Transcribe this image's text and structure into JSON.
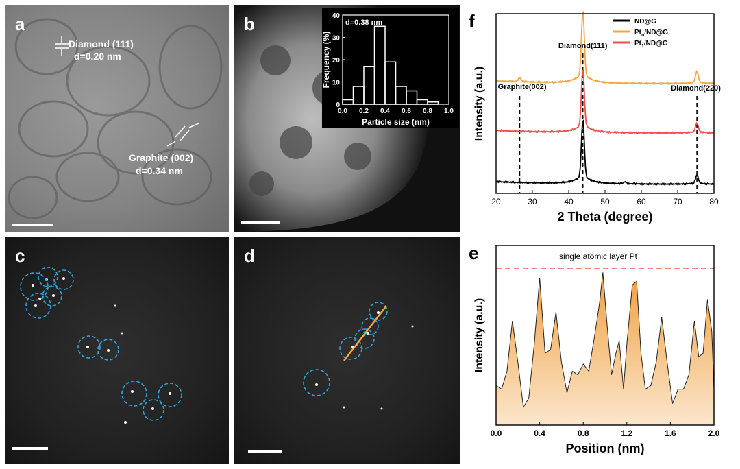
{
  "panels": {
    "a": {
      "label": "a",
      "ann1": "Diamond (111)",
      "ann2": "d=0.20 nm",
      "ann3": "Graphite (002)",
      "ann4": "d=0.34 nm"
    },
    "b": {
      "label": "b"
    },
    "c": {
      "label": "c"
    },
    "d": {
      "label": "d"
    },
    "e": {
      "label": "e",
      "line_label": "single atomic layer Pt"
    },
    "f": {
      "label": "f"
    }
  },
  "chart_data": [
    {
      "id": "b-inset",
      "type": "bar",
      "annotation": "d=0.38 nm",
      "xlabel": "Particle size (nm)",
      "ylabel": "Frequency (%)",
      "categories": [
        0.0,
        0.1,
        0.2,
        0.3,
        0.4,
        0.5,
        0.6,
        0.7,
        0.8,
        0.9
      ],
      "bin_width": 0.1,
      "values": [
        2,
        8,
        17,
        35,
        19,
        8,
        6,
        2,
        1,
        0
      ],
      "xlim": [
        0.0,
        1.0
      ],
      "ylim": [
        0,
        40
      ],
      "xticks": [
        "0.0",
        "0.2",
        "0.4",
        "0.6",
        "0.8",
        "1.0"
      ],
      "yticks": [
        "0",
        "10",
        "20",
        "30",
        "40"
      ]
    },
    {
      "id": "e",
      "type": "area",
      "xlabel": "Position (nm)",
      "ylabel": "Intensity (a.u.)",
      "xlim": [
        0.0,
        2.0
      ],
      "ylim": [
        0,
        1
      ],
      "xticks": [
        "0.0",
        "0.4",
        "0.8",
        "1.2",
        "1.6",
        "2.0"
      ],
      "x": [
        0,
        0.05,
        0.1,
        0.15,
        0.2,
        0.25,
        0.3,
        0.35,
        0.4,
        0.45,
        0.5,
        0.55,
        0.6,
        0.65,
        0.7,
        0.75,
        0.8,
        0.85,
        0.9,
        0.95,
        0.98,
        1.02,
        1.06,
        1.1,
        1.13,
        1.17,
        1.2,
        1.25,
        1.29,
        1.33,
        1.37,
        1.42,
        1.47,
        1.52,
        1.57,
        1.62,
        1.67,
        1.72,
        1.77,
        1.82,
        1.86,
        1.9,
        1.94,
        1.98,
        2.0
      ],
      "y": [
        0.22,
        0.2,
        0.3,
        0.58,
        0.35,
        0.1,
        0.15,
        0.45,
        0.82,
        0.4,
        0.42,
        0.63,
        0.35,
        0.18,
        0.3,
        0.28,
        0.34,
        0.3,
        0.48,
        0.68,
        0.85,
        0.55,
        0.28,
        0.4,
        0.47,
        0.2,
        0.45,
        0.78,
        0.8,
        0.4,
        0.2,
        0.22,
        0.35,
        0.6,
        0.35,
        0.12,
        0.2,
        0.2,
        0.28,
        0.58,
        0.38,
        0.4,
        0.7,
        0.52,
        0.2
      ],
      "reference_level": 0.87
    },
    {
      "id": "f",
      "type": "line",
      "xlabel": "2 Theta (degree)",
      "ylabel": "Intensity (a.u.)",
      "xlim": [
        20,
        80
      ],
      "xticks": [
        "20",
        "30",
        "40",
        "50",
        "60",
        "70",
        "80"
      ],
      "annotations": [
        "Graphite(002)",
        "Diamond(111)",
        "Diamond(220)"
      ],
      "reference_lines_x": [
        26.5,
        43.9,
        75.3
      ],
      "series": [
        {
          "name": "ND@G",
          "color": "#000000",
          "offset": 0,
          "peaks": [
            [
              43.9,
              0.64
            ],
            [
              75.3,
              0.09
            ],
            [
              55.5,
              0.02
            ]
          ]
        },
        {
          "name_main": "Pt",
          "name_sub": "n",
          "name_rest": "/ND@G",
          "color": "#f5a742",
          "offset": 1.05,
          "peaks": [
            [
              43.9,
              0.72
            ],
            [
              75.3,
              0.12
            ],
            [
              26.5,
              0.04
            ]
          ]
        },
        {
          "name_main": "Pt",
          "name_sub": "1",
          "name_rest": "/ND@G",
          "color": "#f05050",
          "offset": 0.55,
          "peaks": [
            [
              43.9,
              0.64
            ],
            [
              75.3,
              0.1
            ]
          ]
        }
      ]
    }
  ]
}
